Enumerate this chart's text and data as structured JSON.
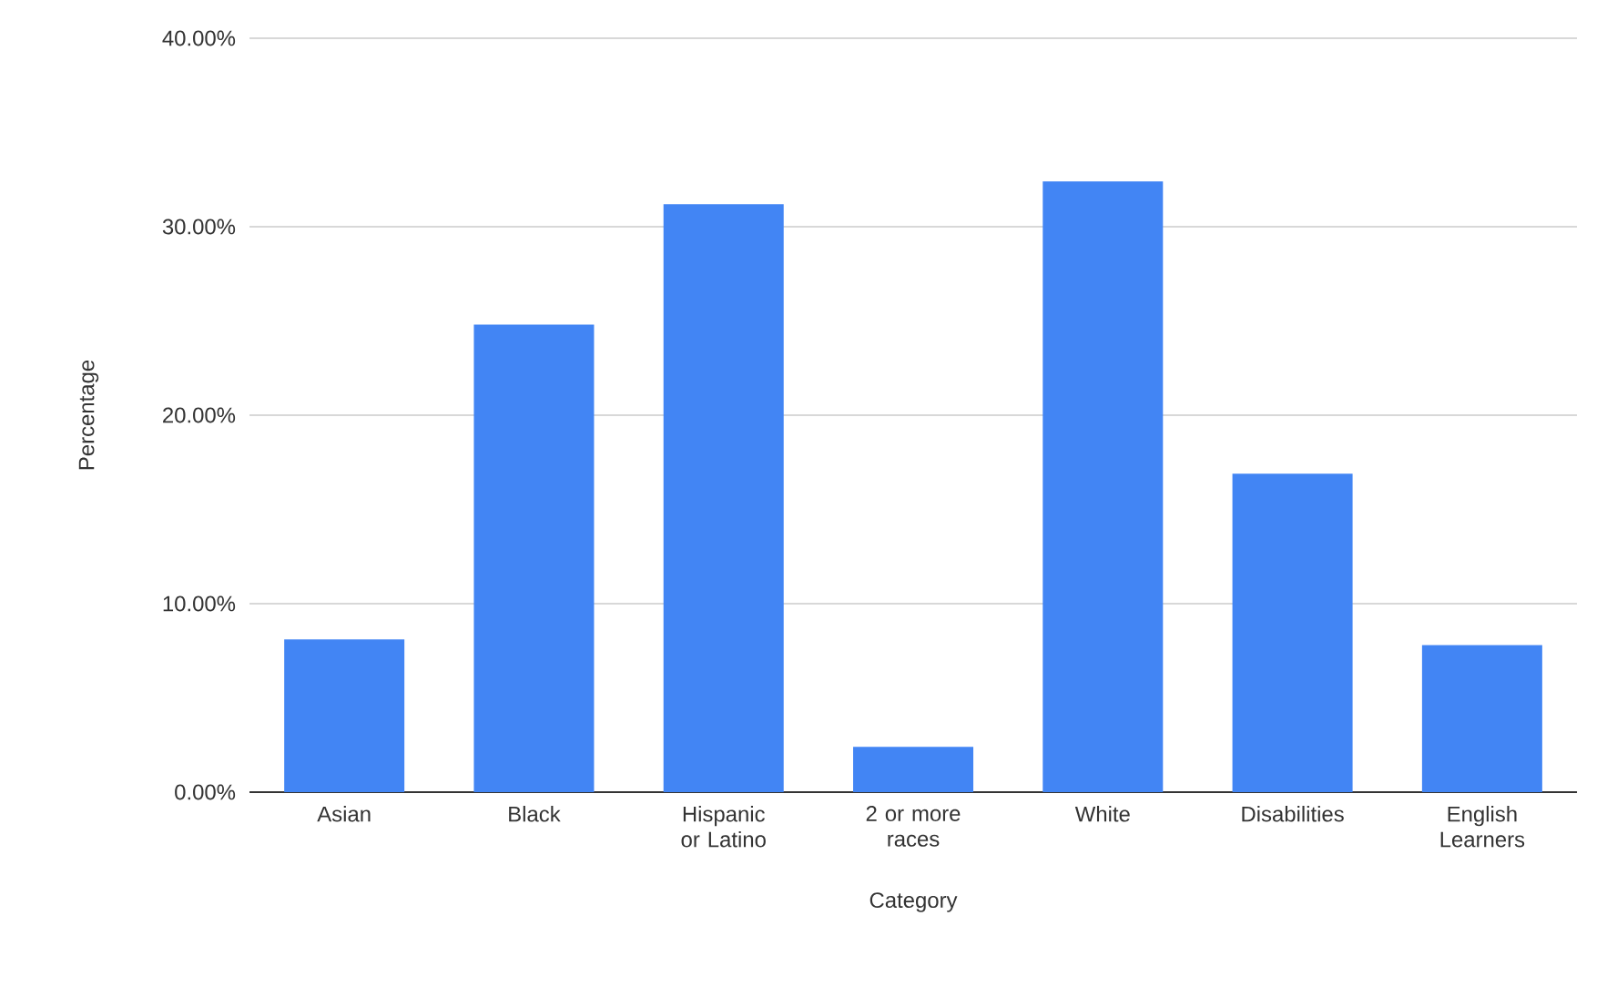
{
  "chart_data": {
    "type": "bar",
    "xlabel": "Category",
    "ylabel": "Percentage",
    "categories": [
      "Asian",
      "Black",
      "Hispanic or Latino",
      "2 or more races",
      "White",
      "Disabilities",
      "English Learners"
    ],
    "values": [
      8.1,
      24.8,
      31.2,
      2.4,
      32.4,
      16.9,
      7.8
    ],
    "color": "#4285f4",
    "ylim": [
      0,
      40
    ],
    "yticks": [
      {
        "value": 0,
        "label": "0.00%"
      },
      {
        "value": 10,
        "label": "10.00%"
      },
      {
        "value": 20,
        "label": "20.00%"
      },
      {
        "value": 30,
        "label": "30.00%"
      },
      {
        "value": 40,
        "label": "40.00%"
      }
    ],
    "grid": "y"
  }
}
